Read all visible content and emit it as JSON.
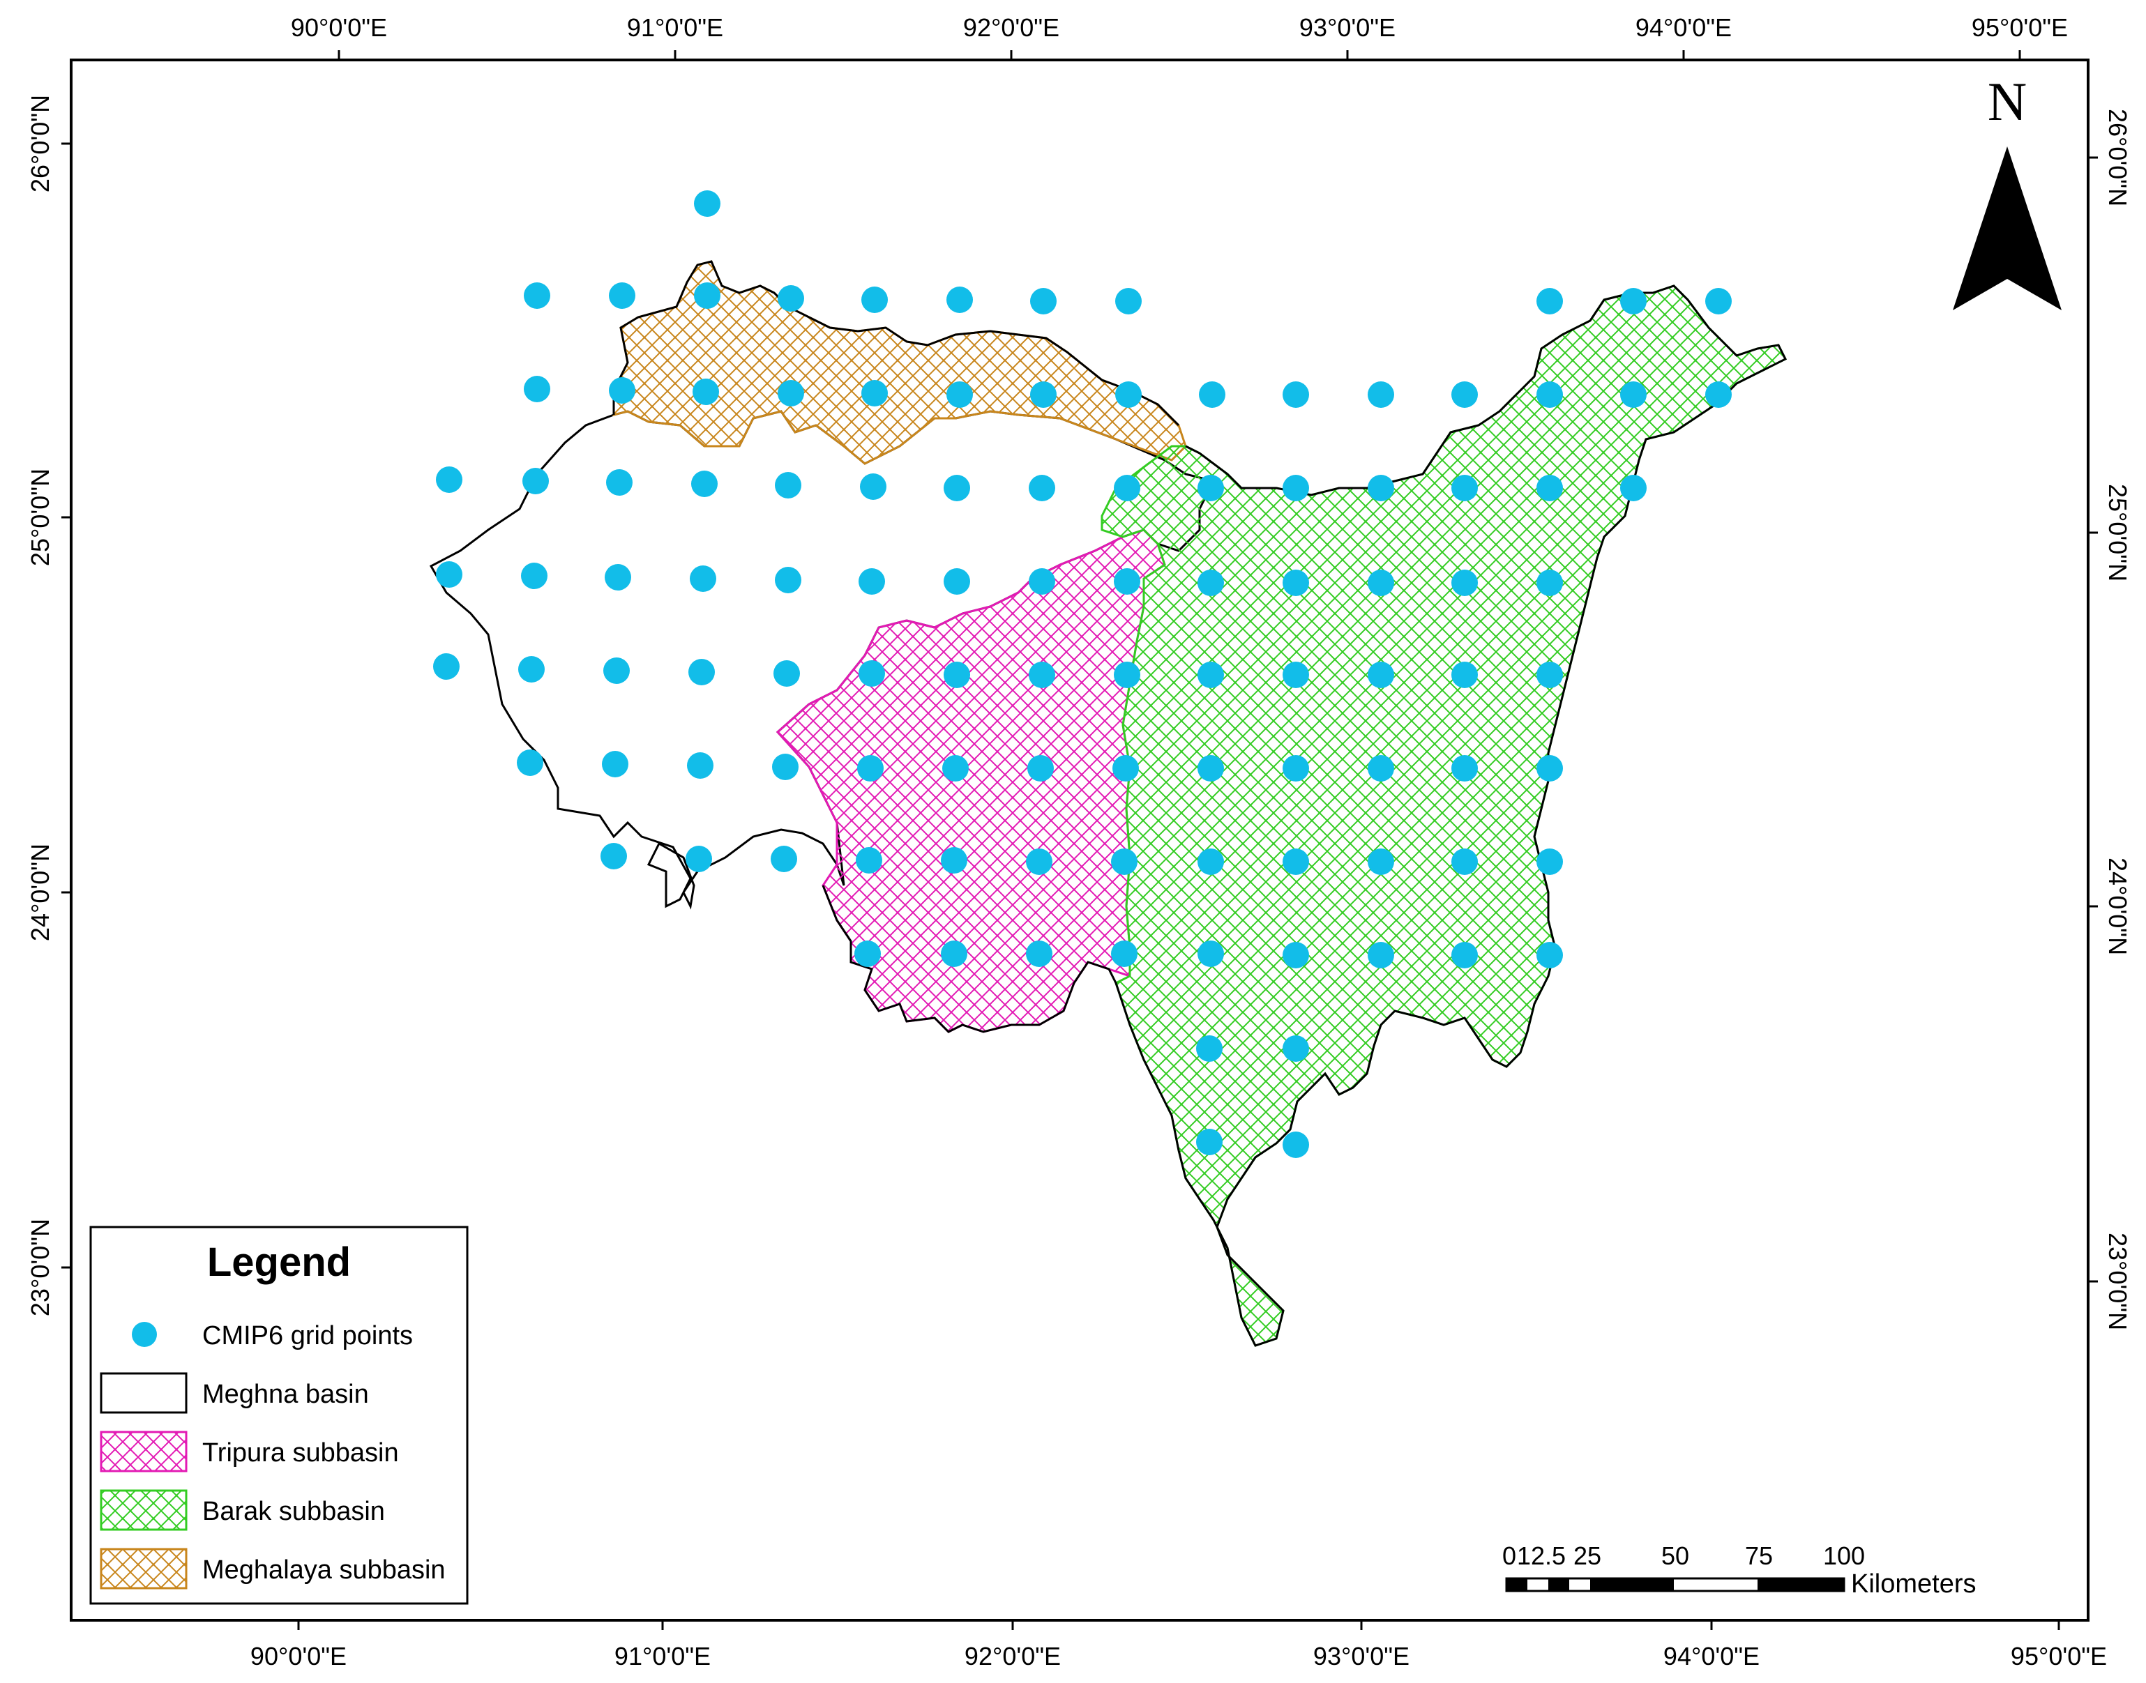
{
  "map": {
    "north_label": "N",
    "longitude_ticks": [
      "90°0'0\"E",
      "91°0'0\"E",
      "92°0'0\"E",
      "93°0'0\"E",
      "94°0'0\"E",
      "95°0'0\"E"
    ],
    "latitude_ticks": [
      "26°0'0\"N",
      "25°0'0\"N",
      "24°0'0\"N",
      "23°0'0\"N"
    ],
    "scale_bar": {
      "labels": [
        "0",
        "12.5",
        "25",
        "50",
        "75",
        "100"
      ],
      "unit": "Kilometers"
    },
    "legend": {
      "title": "Legend",
      "items": [
        {
          "label": "CMIP6 grid points",
          "symbol": "point",
          "color": "#12bde9"
        },
        {
          "label": "Meghna basin",
          "symbol": "outline",
          "color": "#000000"
        },
        {
          "label": "Tripura subbasin",
          "symbol": "hatch",
          "color": "#e31ab4"
        },
        {
          "label": "Barak subbasin",
          "symbol": "hatch",
          "color": "#33cc22"
        },
        {
          "label": "Meghalaya subbasin",
          "symbol": "hatch",
          "color": "#c8861c"
        }
      ]
    },
    "colors": {
      "grid_point": "#12bde9",
      "tripura": "#e31ab4",
      "barak": "#33cc22",
      "meghalaya": "#c8861c",
      "outline": "#000000"
    }
  }
}
